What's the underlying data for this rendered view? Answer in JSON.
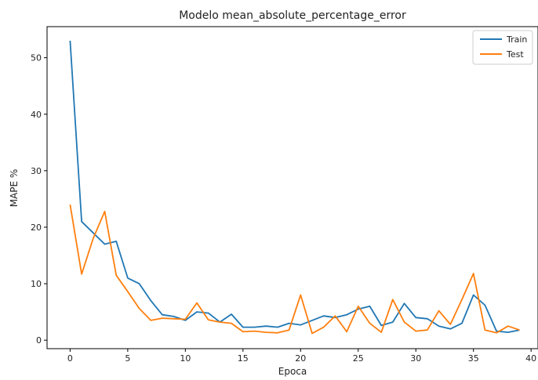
{
  "chart_data": {
    "type": "line",
    "title": "Modelo mean_absolute_percentage_error",
    "xlabel": "Epoca",
    "ylabel": "MAPE %",
    "xlim": [
      -2,
      40.6
    ],
    "ylim": [
      -1.5,
      55.5
    ],
    "xticks": [
      0,
      5,
      10,
      15,
      20,
      25,
      30,
      35,
      40
    ],
    "yticks": [
      0,
      10,
      20,
      30,
      40,
      50
    ],
    "legend_position": "top-right",
    "grid": false,
    "x": [
      0,
      1,
      2,
      3,
      4,
      5,
      6,
      7,
      8,
      9,
      10,
      11,
      12,
      13,
      14,
      15,
      16,
      17,
      18,
      19,
      20,
      21,
      22,
      23,
      24,
      25,
      26,
      27,
      28,
      29,
      30,
      31,
      32,
      33,
      34,
      35,
      36,
      37,
      38,
      39
    ],
    "series": [
      {
        "name": "Train",
        "color": "#1f77b4",
        "values": [
          53.0,
          21.0,
          19.0,
          17.0,
          17.5,
          11.0,
          10.0,
          7.0,
          4.5,
          4.2,
          3.5,
          5.0,
          4.8,
          3.2,
          4.6,
          2.3,
          2.3,
          2.5,
          2.3,
          3.0,
          2.7,
          3.5,
          4.3,
          4.0,
          4.5,
          5.5,
          6.0,
          2.6,
          3.2,
          6.5,
          4.0,
          3.8,
          2.5,
          2.0,
          3.0,
          8.0,
          6.2,
          1.6,
          1.4,
          1.8
        ]
      },
      {
        "name": "Test",
        "color": "#ff7f0e",
        "values": [
          24.0,
          11.7,
          18.0,
          22.8,
          11.5,
          8.6,
          5.6,
          3.5,
          3.9,
          3.8,
          3.7,
          6.6,
          3.6,
          3.2,
          3.0,
          1.5,
          1.6,
          1.4,
          1.3,
          1.8,
          8.0,
          1.2,
          2.3,
          4.3,
          1.5,
          6.0,
          3.0,
          1.4,
          7.2,
          3.2,
          1.6,
          1.8,
          5.2,
          2.8,
          7.2,
          11.8,
          1.8,
          1.3,
          2.5,
          1.8
        ]
      }
    ]
  }
}
